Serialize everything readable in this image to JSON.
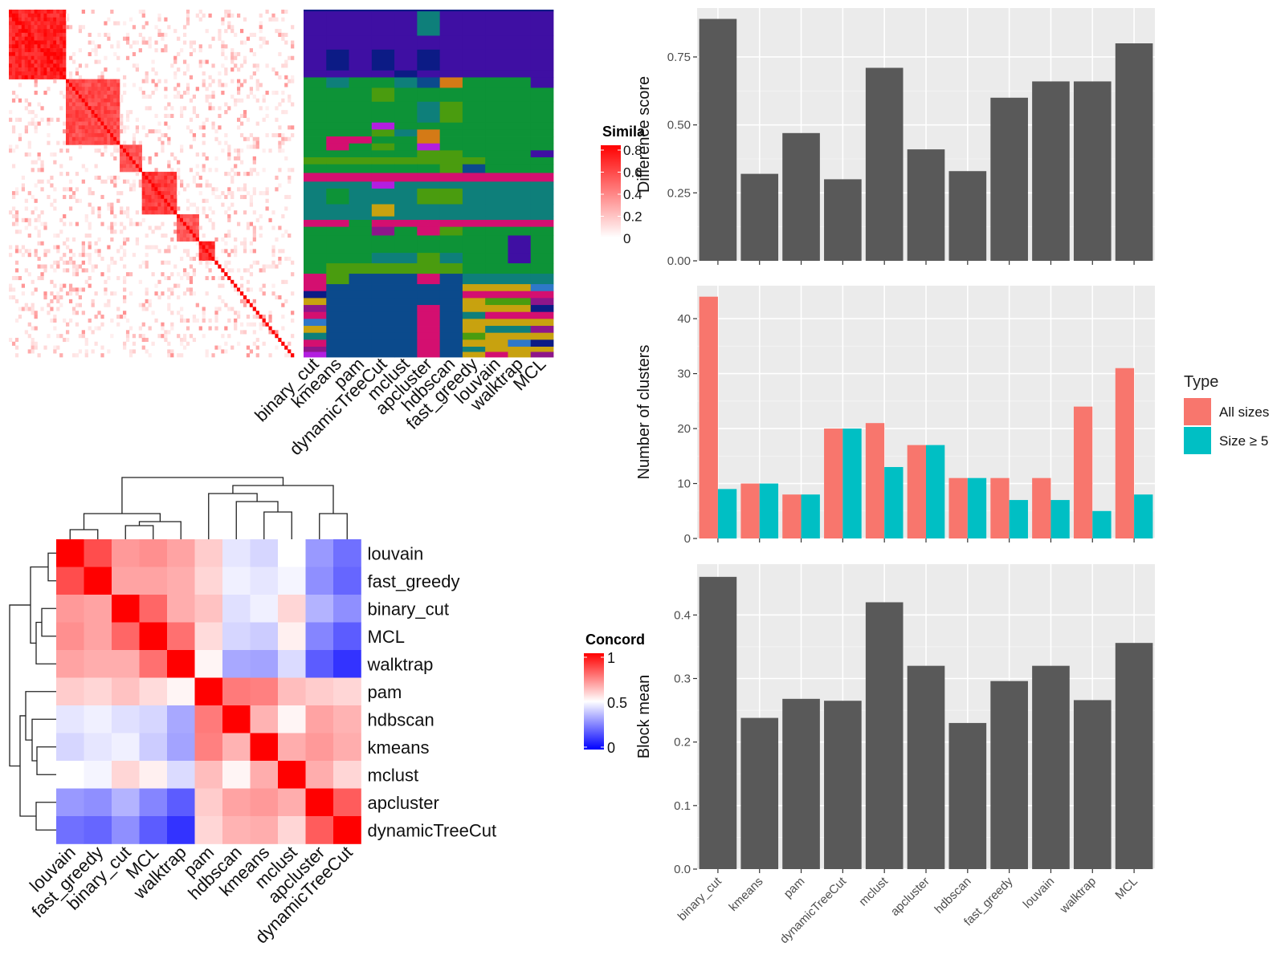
{
  "chart_data": [
    {
      "id": "similarity_heatmap",
      "type": "heatmap",
      "legend": {
        "title": "Simila",
        "ticks": [
          "0.8",
          "0.6",
          "0.4",
          "0.2",
          "0"
        ],
        "range": [
          0,
          0.8
        ]
      },
      "method_columns": [
        "binary_cut",
        "kmeans",
        "pam",
        "dynamicTreeCut",
        "mclust",
        "apcluster",
        "hdbscan",
        "fast_greedy",
        "louvain",
        "walktrap",
        "MCL"
      ],
      "blocks": [
        {
          "start": 0.0,
          "end": 0.2,
          "value": 0.8
        },
        {
          "start": 0.2,
          "end": 0.38,
          "value": 0.65
        },
        {
          "start": 0.38,
          "end": 0.46,
          "value": 0.6
        },
        {
          "start": 0.46,
          "end": 0.58,
          "value": 0.7
        },
        {
          "start": 0.58,
          "end": 0.66,
          "value": 0.6
        },
        {
          "start": 0.66,
          "end": 0.72,
          "value": 0.75
        }
      ]
    },
    {
      "id": "cluster_assignment",
      "type": "heatmap",
      "colors": [
        "#3f0fa3",
        "#0d9337",
        "#0e7f7a",
        "#0b4a8c",
        "#d40f70",
        "#4a9c0f",
        "#c8a20f",
        "#b31ee0",
        "#d47a16",
        "#0c1b85",
        "#8e168a",
        "#2e78c9"
      ]
    },
    {
      "id": "concordance_heatmap",
      "type": "heatmap",
      "legend": {
        "title": "Concord",
        "ticks": [
          "1",
          "0.5",
          "0"
        ],
        "range": [
          0,
          1
        ]
      },
      "rows": [
        "louvain",
        "fast_greedy",
        "binary_cut",
        "MCL",
        "walktrap",
        "pam",
        "hdbscan",
        "kmeans",
        "mclust",
        "apcluster",
        "dynamicTreeCut"
      ],
      "columns": [
        "louvain",
        "fast_greedy",
        "binary_cut",
        "MCL",
        "walktrap",
        "pam",
        "hdbscan",
        "kmeans",
        "mclust",
        "apcluster",
        "dynamicTreeCut"
      ],
      "values": [
        [
          1.0,
          0.85,
          0.7,
          0.72,
          0.68,
          0.6,
          0.45,
          0.42,
          0.5,
          0.3,
          0.22
        ],
        [
          0.85,
          1.0,
          0.68,
          0.68,
          0.66,
          0.58,
          0.47,
          0.45,
          0.48,
          0.28,
          0.2
        ],
        [
          0.7,
          0.68,
          1.0,
          0.8,
          0.66,
          0.62,
          0.44,
          0.47,
          0.58,
          0.35,
          0.28
        ],
        [
          0.72,
          0.68,
          0.8,
          1.0,
          0.78,
          0.57,
          0.42,
          0.4,
          0.53,
          0.26,
          0.18
        ],
        [
          0.68,
          0.66,
          0.66,
          0.78,
          1.0,
          0.52,
          0.33,
          0.32,
          0.43,
          0.18,
          0.1
        ],
        [
          0.6,
          0.58,
          0.62,
          0.57,
          0.52,
          1.0,
          0.76,
          0.75,
          0.63,
          0.6,
          0.58
        ],
        [
          0.45,
          0.47,
          0.44,
          0.42,
          0.33,
          0.76,
          1.0,
          0.65,
          0.52,
          0.68,
          0.65
        ],
        [
          0.42,
          0.45,
          0.47,
          0.4,
          0.32,
          0.75,
          0.65,
          1.0,
          0.66,
          0.7,
          0.66
        ],
        [
          0.5,
          0.48,
          0.58,
          0.53,
          0.43,
          0.63,
          0.52,
          0.66,
          1.0,
          0.66,
          0.58
        ],
        [
          0.3,
          0.28,
          0.35,
          0.26,
          0.18,
          0.6,
          0.68,
          0.7,
          0.66,
          1.0,
          0.82
        ],
        [
          0.22,
          0.2,
          0.28,
          0.18,
          0.1,
          0.58,
          0.65,
          0.66,
          0.58,
          0.82,
          1.0
        ]
      ]
    },
    {
      "id": "difference_score",
      "type": "bar",
      "categories": [
        "binary_cut",
        "kmeans",
        "pam",
        "dynamicTreeCut",
        "mclust",
        "apcluster",
        "hdbscan",
        "fast_greedy",
        "louvain",
        "walktrap",
        "MCL"
      ],
      "values": [
        0.89,
        0.32,
        0.47,
        0.3,
        0.71,
        0.41,
        0.33,
        0.6,
        0.66,
        0.66,
        0.8
      ],
      "ylabel": "Difference score",
      "ylim": [
        0,
        0.93
      ],
      "yticks": [
        0,
        0.25,
        0.5,
        0.75
      ],
      "ytick_labels": [
        "0.00",
        "0.25",
        "0.50",
        "0.75"
      ],
      "color": "#595959",
      "grid": true
    },
    {
      "id": "number_of_clusters",
      "type": "bar",
      "categories": [
        "binary_cut",
        "kmeans",
        "pam",
        "dynamicTreeCut",
        "mclust",
        "apcluster",
        "hdbscan",
        "fast_greedy",
        "louvain",
        "walktrap",
        "MCL"
      ],
      "series": [
        {
          "name": "All sizes",
          "color": "#f8766d",
          "values": [
            44,
            10,
            8,
            20,
            21,
            17,
            11,
            11,
            11,
            24,
            31
          ]
        },
        {
          "name": "Size ≥ 5",
          "color": "#00bfc4",
          "values": [
            9,
            10,
            8,
            20,
            13,
            17,
            11,
            7,
            7,
            5,
            8
          ]
        }
      ],
      "ylabel": "Number of clusters",
      "ylim": [
        0,
        46
      ],
      "yticks": [
        0,
        10,
        20,
        30,
        40
      ],
      "ytick_labels": [
        "0",
        "10",
        "20",
        "30",
        "40"
      ],
      "legend": {
        "title": "Type",
        "position": "right"
      },
      "grid": true
    },
    {
      "id": "block_mean",
      "type": "bar",
      "categories": [
        "binary_cut",
        "kmeans",
        "pam",
        "dynamicTreeCut",
        "mclust",
        "apcluster",
        "hdbscan",
        "fast_greedy",
        "louvain",
        "walktrap",
        "MCL"
      ],
      "values": [
        0.46,
        0.238,
        0.268,
        0.265,
        0.42,
        0.32,
        0.23,
        0.296,
        0.32,
        0.266,
        0.356
      ],
      "ylabel": "Block mean",
      "ylim": [
        0,
        0.48
      ],
      "yticks": [
        0,
        0.1,
        0.2,
        0.3,
        0.4
      ],
      "ytick_labels": [
        "0.0",
        "0.1",
        "0.2",
        "0.3",
        "0.4"
      ],
      "color": "#595959",
      "grid": true
    }
  ]
}
